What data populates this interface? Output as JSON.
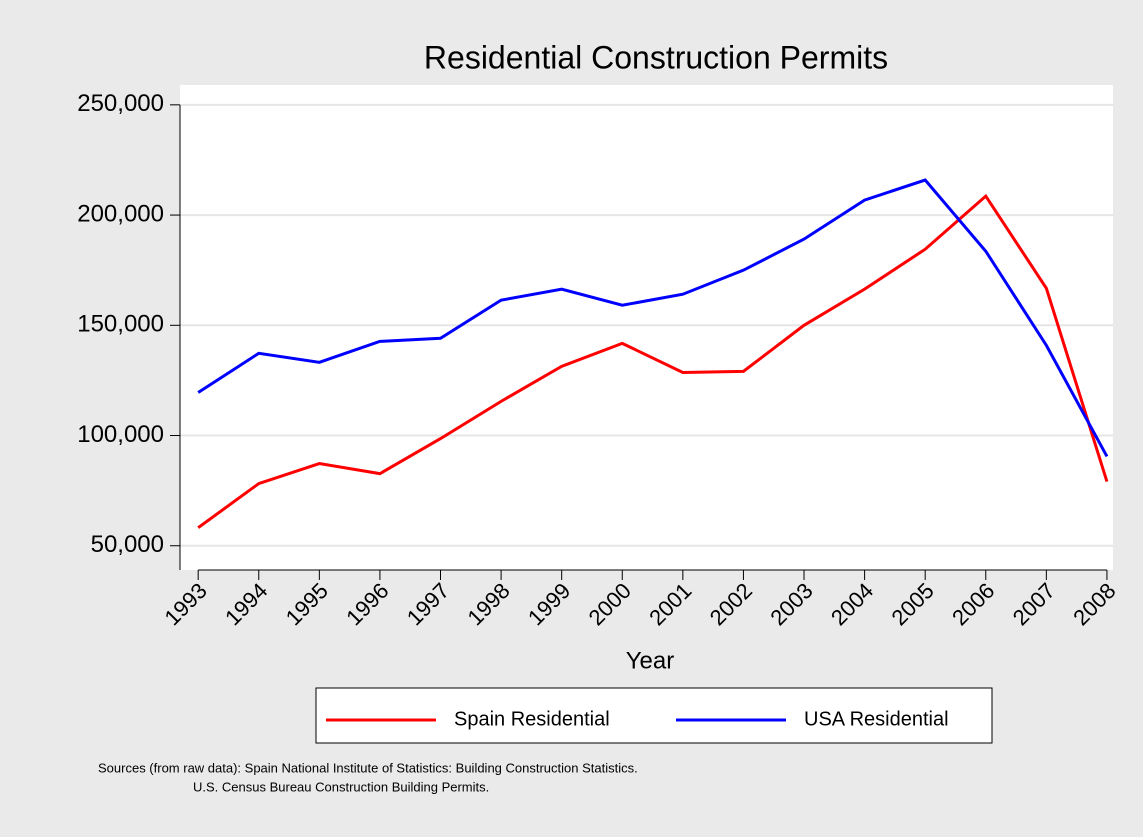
{
  "chart_data": {
    "type": "line",
    "title": "Residential Construction Permits",
    "x_label": "Year",
    "x": [
      1993,
      1994,
      1995,
      1996,
      1997,
      1998,
      1999,
      2000,
      2001,
      2002,
      2003,
      2004,
      2005,
      2006,
      2007,
      2008
    ],
    "series": [
      {
        "name": "Spain Residential",
        "color": "#ff0000",
        "values": [
          58200,
          78200,
          87300,
          82700,
          98600,
          115500,
          131400,
          141800,
          128600,
          129100,
          150000,
          166400,
          184500,
          208600,
          166800,
          79100
        ]
      },
      {
        "name": "USA Residential",
        "color": "#0000ff",
        "values": [
          119500,
          137300,
          133200,
          142700,
          144100,
          161400,
          166400,
          159100,
          164100,
          175000,
          189100,
          206800,
          215900,
          183600,
          140900,
          90500
        ]
      }
    ],
    "xlim": [
      1992.7,
      2008.1
    ],
    "xticks": [
      1993,
      1994,
      1995,
      1996,
      1997,
      1998,
      1999,
      2000,
      2001,
      2002,
      2003,
      2004,
      2005,
      2006,
      2007,
      2008
    ],
    "ylim": [
      39000,
      259000
    ],
    "yticks": [
      {
        "value": 50000,
        "label": "50,000"
      },
      {
        "value": 100000,
        "label": "100,000"
      },
      {
        "value": 150000,
        "label": "150,000"
      },
      {
        "value": 200000,
        "label": "200,000"
      },
      {
        "value": 250000,
        "label": "250,000"
      }
    ],
    "grid": true,
    "legend": "bottom",
    "note": [
      "Sources (from raw data): Spain National Institute of Statistics: Building Construction Statistics.",
      "U.S. Census Bureau Construction Building Permits."
    ]
  }
}
